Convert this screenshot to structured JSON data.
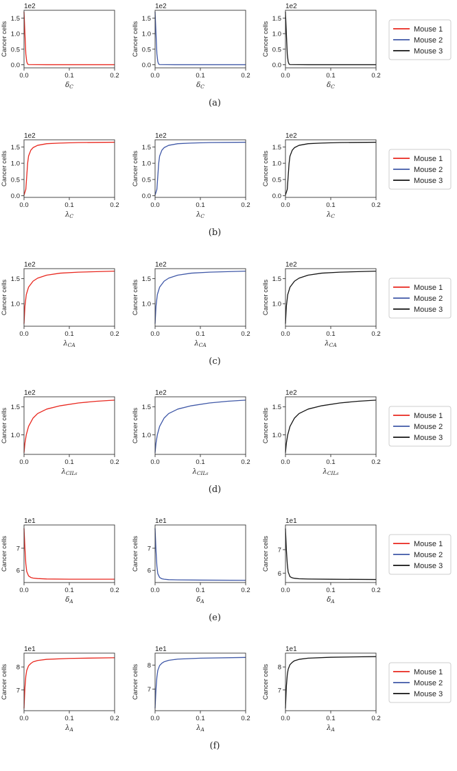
{
  "figure_rows": [
    {
      "caption": "(a)",
      "legend": [
        "Mouse 1",
        "Mouse 2",
        "Mouse 3"
      ]
    },
    {
      "caption": "(b)",
      "legend": [
        "Mouse 1",
        "Mouse 2",
        "Mouse 3"
      ]
    },
    {
      "caption": "(c)",
      "legend": [
        "Mouse 1",
        "Mouse 2",
        "Mouse 3"
      ]
    },
    {
      "caption": "(d)",
      "legend": [
        "Mouse 1",
        "Mouse 2",
        "Mouse 3"
      ]
    },
    {
      "caption": "(e)",
      "legend": [
        "Mouse 1",
        "Mouse 2",
        "Mouse 3"
      ]
    },
    {
      "caption": "(f)",
      "legend": [
        "Mouse 1",
        "Mouse 2",
        "Mouse 3"
      ]
    }
  ],
  "colors": {
    "Mouse 1": "#e8251c",
    "Mouse 2": "#3d56a6",
    "Mouse 3": "#111111"
  },
  "chart_data": [
    {
      "type": "line",
      "row": 0,
      "col": 0,
      "xlabel_sym": "δ",
      "xlabel_sub": "C",
      "ylabel": "Cancer cells",
      "y_exponent": "1e2",
      "xlim": [
        0,
        0.2
      ],
      "ylim": [
        -0.1,
        1.75
      ],
      "yticks": [
        "0.0",
        "0.5",
        "1.0",
        "1.5"
      ],
      "ytick_values": [
        0,
        0.5,
        1.0,
        1.5
      ],
      "xticks": [
        "0.0",
        "0.1",
        "0.2"
      ],
      "series": [
        {
          "name": "Mouse 1",
          "x": [
            0,
            0.002,
            0.004,
            0.006,
            0.008,
            0.01,
            0.05,
            0.2
          ],
          "y": [
            1.7,
            1.0,
            0.35,
            0.1,
            0.02,
            0.005,
            0.0,
            0.0
          ]
        }
      ]
    },
    {
      "type": "line",
      "row": 0,
      "col": 1,
      "xlabel_sym": "δ",
      "xlabel_sub": "C",
      "ylabel": "Cancer cells",
      "y_exponent": "1e2",
      "xlim": [
        0,
        0.2
      ],
      "ylim": [
        -0.1,
        1.75
      ],
      "yticks": [
        "0.0",
        "0.5",
        "1.0",
        "1.5"
      ],
      "ytick_values": [
        0,
        0.5,
        1.0,
        1.5
      ],
      "xticks": [
        "0.0",
        "0.1",
        "0.2"
      ],
      "series": [
        {
          "name": "Mouse 2",
          "x": [
            0,
            0.002,
            0.004,
            0.006,
            0.008,
            0.01,
            0.05,
            0.2
          ],
          "y": [
            1.7,
            1.0,
            0.35,
            0.1,
            0.02,
            0.005,
            0.0,
            0.0
          ]
        }
      ]
    },
    {
      "type": "line",
      "row": 0,
      "col": 2,
      "xlabel_sym": "δ",
      "xlabel_sub": "C",
      "ylabel": "Cancer cells",
      "y_exponent": "1e2",
      "xlim": [
        0,
        0.2
      ],
      "ylim": [
        -0.1,
        1.75
      ],
      "yticks": [
        "0.0",
        "0.5",
        "1.0",
        "1.5"
      ],
      "ytick_values": [
        0,
        0.5,
        1.0,
        1.5
      ],
      "xticks": [
        "0.0",
        "0.1",
        "0.2"
      ],
      "series": [
        {
          "name": "Mouse 3",
          "x": [
            0,
            0.002,
            0.004,
            0.006,
            0.008,
            0.01,
            0.05,
            0.2
          ],
          "y": [
            1.7,
            1.0,
            0.35,
            0.1,
            0.02,
            0.005,
            0.0,
            0.0
          ]
        }
      ]
    },
    {
      "type": "line",
      "row": 1,
      "col": 0,
      "xlabel_sym": "λ",
      "xlabel_sub": "C",
      "ylabel": "Cancer cells",
      "y_exponent": "1e2",
      "xlim": [
        0,
        0.2
      ],
      "ylim": [
        -0.05,
        1.72
      ],
      "yticks": [
        "0.0",
        "0.5",
        "1.0",
        "1.5"
      ],
      "ytick_values": [
        0,
        0.5,
        1.0,
        1.5
      ],
      "xticks": [
        "0.0",
        "0.1",
        "0.2"
      ],
      "series": [
        {
          "name": "Mouse 1",
          "x": [
            0,
            0.004,
            0.006,
            0.008,
            0.01,
            0.015,
            0.02,
            0.03,
            0.05,
            0.08,
            0.12,
            0.2
          ],
          "y": [
            0.02,
            0.2,
            0.6,
            1.0,
            1.22,
            1.4,
            1.48,
            1.55,
            1.6,
            1.62,
            1.635,
            1.645
          ]
        }
      ]
    },
    {
      "type": "line",
      "row": 1,
      "col": 1,
      "xlabel_sym": "λ",
      "xlabel_sub": "C",
      "ylabel": "Cancer cells",
      "y_exponent": "1e2",
      "xlim": [
        0,
        0.2
      ],
      "ylim": [
        -0.05,
        1.72
      ],
      "yticks": [
        "0.0",
        "0.5",
        "1.0",
        "1.5"
      ],
      "ytick_values": [
        0,
        0.5,
        1.0,
        1.5
      ],
      "xticks": [
        "0.0",
        "0.1",
        "0.2"
      ],
      "series": [
        {
          "name": "Mouse 2",
          "x": [
            0,
            0.004,
            0.006,
            0.008,
            0.01,
            0.015,
            0.02,
            0.03,
            0.05,
            0.08,
            0.12,
            0.2
          ],
          "y": [
            0.02,
            0.2,
            0.6,
            1.0,
            1.22,
            1.4,
            1.48,
            1.55,
            1.6,
            1.62,
            1.635,
            1.645
          ]
        }
      ]
    },
    {
      "type": "line",
      "row": 1,
      "col": 2,
      "xlabel_sym": "λ",
      "xlabel_sub": "C",
      "ylabel": "Cancer cells",
      "y_exponent": "1e2",
      "xlim": [
        0,
        0.2
      ],
      "ylim": [
        -0.05,
        1.72
      ],
      "yticks": [
        "0.0",
        "0.5",
        "1.0",
        "1.5"
      ],
      "ytick_values": [
        0,
        0.5,
        1.0,
        1.5
      ],
      "xticks": [
        "0.0",
        "0.1",
        "0.2"
      ],
      "series": [
        {
          "name": "Mouse 3",
          "x": [
            0,
            0.004,
            0.006,
            0.008,
            0.01,
            0.015,
            0.02,
            0.03,
            0.05,
            0.08,
            0.12,
            0.2
          ],
          "y": [
            0.02,
            0.2,
            0.6,
            1.0,
            1.22,
            1.4,
            1.48,
            1.55,
            1.6,
            1.62,
            1.635,
            1.645
          ]
        }
      ]
    },
    {
      "type": "line",
      "row": 2,
      "col": 0,
      "xlabel_sym": "λ",
      "xlabel_sub": "CA",
      "ylabel": "Cancer cells",
      "y_exponent": "1e2",
      "xlim": [
        0,
        0.2
      ],
      "ylim": [
        0.55,
        1.7
      ],
      "yticks": [
        "1.0",
        "1.5"
      ],
      "ytick_values": [
        1.0,
        1.5
      ],
      "xticks": [
        "0.0",
        "0.1",
        "0.2"
      ],
      "series": [
        {
          "name": "Mouse 1",
          "x": [
            0,
            0.002,
            0.005,
            0.01,
            0.02,
            0.03,
            0.05,
            0.08,
            0.12,
            0.2
          ],
          "y": [
            0.6,
            0.95,
            1.18,
            1.33,
            1.45,
            1.51,
            1.57,
            1.61,
            1.63,
            1.65
          ]
        }
      ]
    },
    {
      "type": "line",
      "row": 2,
      "col": 1,
      "xlabel_sym": "λ",
      "xlabel_sub": "CA",
      "ylabel": "Cancer cells",
      "y_exponent": "1e2",
      "xlim": [
        0,
        0.2
      ],
      "ylim": [
        0.55,
        1.7
      ],
      "yticks": [
        "1.0",
        "1.5"
      ],
      "ytick_values": [
        1.0,
        1.5
      ],
      "xticks": [
        "0.0",
        "0.1",
        "0.2"
      ],
      "series": [
        {
          "name": "Mouse 2",
          "x": [
            0,
            0.002,
            0.005,
            0.01,
            0.02,
            0.03,
            0.05,
            0.08,
            0.12,
            0.2
          ],
          "y": [
            0.6,
            0.95,
            1.18,
            1.33,
            1.45,
            1.51,
            1.57,
            1.61,
            1.63,
            1.65
          ]
        }
      ]
    },
    {
      "type": "line",
      "row": 2,
      "col": 2,
      "xlabel_sym": "λ",
      "xlabel_sub": "CA",
      "ylabel": "Cancer cells",
      "y_exponent": "1e2",
      "xlim": [
        0,
        0.2
      ],
      "ylim": [
        0.55,
        1.7
      ],
      "yticks": [
        "1.0",
        "1.5"
      ],
      "ytick_values": [
        1.0,
        1.5
      ],
      "xticks": [
        "0.0",
        "0.1",
        "0.2"
      ],
      "series": [
        {
          "name": "Mouse 3",
          "x": [
            0,
            0.002,
            0.005,
            0.01,
            0.02,
            0.03,
            0.05,
            0.08,
            0.12,
            0.2
          ],
          "y": [
            0.6,
            0.95,
            1.18,
            1.33,
            1.45,
            1.51,
            1.57,
            1.61,
            1.63,
            1.65
          ]
        }
      ]
    },
    {
      "type": "line",
      "row": 3,
      "col": 0,
      "xlabel_sym": "λ",
      "xlabel_sub": "CIL₆",
      "ylabel": "Cancer cells",
      "y_exponent": "1e2",
      "xlim": [
        0,
        0.2
      ],
      "ylim": [
        0.65,
        1.68
      ],
      "yticks": [
        "1.0",
        "1.5"
      ],
      "ytick_values": [
        1.0,
        1.5
      ],
      "xticks": [
        "0.0",
        "0.1",
        "0.2"
      ],
      "series": [
        {
          "name": "Mouse 1",
          "x": [
            0,
            0.002,
            0.005,
            0.01,
            0.02,
            0.03,
            0.05,
            0.08,
            0.12,
            0.16,
            0.2
          ],
          "y": [
            0.68,
            0.85,
            1.0,
            1.15,
            1.3,
            1.38,
            1.46,
            1.52,
            1.57,
            1.6,
            1.62
          ]
        }
      ]
    },
    {
      "type": "line",
      "row": 3,
      "col": 1,
      "xlabel_sym": "λ",
      "xlabel_sub": "CIL₆",
      "ylabel": "Cancer cells",
      "y_exponent": "1e2",
      "xlim": [
        0,
        0.2
      ],
      "ylim": [
        0.65,
        1.68
      ],
      "yticks": [
        "1.0",
        "1.5"
      ],
      "ytick_values": [
        1.0,
        1.5
      ],
      "xticks": [
        "0.0",
        "0.1",
        "0.2"
      ],
      "series": [
        {
          "name": "Mouse 2",
          "x": [
            0,
            0.002,
            0.005,
            0.01,
            0.02,
            0.03,
            0.05,
            0.08,
            0.12,
            0.16,
            0.2
          ],
          "y": [
            0.68,
            0.85,
            1.0,
            1.15,
            1.3,
            1.38,
            1.46,
            1.52,
            1.57,
            1.6,
            1.62
          ]
        }
      ]
    },
    {
      "type": "line",
      "row": 3,
      "col": 2,
      "xlabel_sym": "λ",
      "xlabel_sub": "CIL₆",
      "ylabel": "Cancer cells",
      "y_exponent": "1e2",
      "xlim": [
        0,
        0.2
      ],
      "ylim": [
        0.65,
        1.68
      ],
      "yticks": [
        "1.0",
        "1.5"
      ],
      "ytick_values": [
        1.0,
        1.5
      ],
      "xticks": [
        "0.0",
        "0.1",
        "0.2"
      ],
      "series": [
        {
          "name": "Mouse 3",
          "x": [
            0,
            0.002,
            0.005,
            0.01,
            0.02,
            0.03,
            0.05,
            0.08,
            0.12,
            0.16,
            0.2
          ],
          "y": [
            0.68,
            0.85,
            1.0,
            1.15,
            1.3,
            1.38,
            1.46,
            1.52,
            1.57,
            1.6,
            1.62
          ]
        }
      ]
    },
    {
      "type": "line",
      "row": 4,
      "col": 0,
      "xlabel_sym": "δ",
      "xlabel_sub": "A",
      "ylabel": "Cancer cells",
      "y_exponent": "1e1",
      "xlim": [
        0,
        0.2
      ],
      "ylim": [
        5.45,
        8.05
      ],
      "yticks": [
        "6",
        "7"
      ],
      "ytick_values": [
        6,
        7
      ],
      "xticks": [
        "0.0",
        "0.1",
        "0.2"
      ],
      "series": [
        {
          "name": "Mouse 1",
          "x": [
            0,
            0.002,
            0.004,
            0.006,
            0.01,
            0.015,
            0.02,
            0.03,
            0.05,
            0.1,
            0.2
          ],
          "y": [
            7.9,
            7.0,
            6.3,
            5.95,
            5.75,
            5.68,
            5.65,
            5.63,
            5.61,
            5.6,
            5.6
          ]
        }
      ]
    },
    {
      "type": "line",
      "row": 4,
      "col": 1,
      "xlabel_sym": "δ",
      "xlabel_sub": "A",
      "ylabel": "Cancer cells",
      "y_exponent": "1e1",
      "xlim": [
        0,
        0.2
      ],
      "ylim": [
        5.45,
        8.05
      ],
      "yticks": [
        "6",
        "7"
      ],
      "ytick_values": [
        6,
        7
      ],
      "xticks": [
        "0.0",
        "0.1",
        "0.2"
      ],
      "series": [
        {
          "name": "Mouse 2",
          "x": [
            0,
            0.002,
            0.004,
            0.006,
            0.01,
            0.015,
            0.02,
            0.03,
            0.05,
            0.1,
            0.2
          ],
          "y": [
            7.9,
            6.9,
            6.2,
            5.85,
            5.68,
            5.62,
            5.6,
            5.58,
            5.57,
            5.56,
            5.55
          ]
        }
      ]
    },
    {
      "type": "line",
      "row": 4,
      "col": 2,
      "xlabel_sym": "δ",
      "xlabel_sub": "A",
      "ylabel": "Cancer cells",
      "y_exponent": "1e1",
      "xlim": [
        0,
        0.2
      ],
      "ylim": [
        5.6,
        8.05
      ],
      "yticks": [
        "6",
        "7"
      ],
      "ytick_values": [
        6,
        7
      ],
      "xticks": [
        "0.0",
        "0.1",
        "0.2"
      ],
      "series": [
        {
          "name": "Mouse 3",
          "x": [
            0,
            0.002,
            0.004,
            0.006,
            0.01,
            0.015,
            0.02,
            0.03,
            0.05,
            0.1,
            0.2
          ],
          "y": [
            7.9,
            7.0,
            6.4,
            6.05,
            5.85,
            5.8,
            5.78,
            5.76,
            5.75,
            5.74,
            5.73
          ]
        }
      ]
    },
    {
      "type": "line",
      "row": 5,
      "col": 0,
      "xlabel_sym": "λ",
      "xlabel_sub": "A",
      "ylabel": "Cancer cells",
      "y_exponent": "1e1",
      "xlim": [
        0,
        0.2
      ],
      "ylim": [
        6.1,
        8.6
      ],
      "yticks": [
        "7",
        "8"
      ],
      "ytick_values": [
        7,
        8
      ],
      "xticks": [
        "0.0",
        "0.1",
        "0.2"
      ],
      "series": [
        {
          "name": "Mouse 1",
          "x": [
            0,
            0.002,
            0.004,
            0.006,
            0.01,
            0.015,
            0.02,
            0.03,
            0.05,
            0.1,
            0.2
          ],
          "y": [
            6.2,
            7.1,
            7.6,
            7.85,
            8.05,
            8.15,
            8.22,
            8.28,
            8.33,
            8.37,
            8.4
          ]
        }
      ]
    },
    {
      "type": "line",
      "row": 5,
      "col": 1,
      "xlabel_sym": "λ",
      "xlabel_sub": "A",
      "ylabel": "Cancer cells",
      "y_exponent": "1e1",
      "xlim": [
        0,
        0.2
      ],
      "ylim": [
        6.1,
        8.5
      ],
      "yticks": [
        "7",
        "8"
      ],
      "ytick_values": [
        7,
        8
      ],
      "xticks": [
        "0.0",
        "0.1",
        "0.2"
      ],
      "series": [
        {
          "name": "Mouse 2",
          "x": [
            0,
            0.002,
            0.004,
            0.006,
            0.01,
            0.015,
            0.02,
            0.03,
            0.05,
            0.1,
            0.2
          ],
          "y": [
            6.2,
            7.0,
            7.5,
            7.78,
            7.98,
            8.08,
            8.14,
            8.2,
            8.25,
            8.29,
            8.32
          ]
        }
      ]
    },
    {
      "type": "line",
      "row": 5,
      "col": 2,
      "xlabel_sym": "λ",
      "xlabel_sub": "A",
      "ylabel": "Cancer cells",
      "y_exponent": "1e1",
      "xlim": [
        0,
        0.2
      ],
      "ylim": [
        6.1,
        8.6
      ],
      "yticks": [
        "7",
        "8"
      ],
      "ytick_values": [
        7,
        8
      ],
      "xticks": [
        "0.0",
        "0.1",
        "0.2"
      ],
      "series": [
        {
          "name": "Mouse 3",
          "x": [
            0,
            0.002,
            0.004,
            0.006,
            0.01,
            0.015,
            0.02,
            0.03,
            0.05,
            0.1,
            0.2
          ],
          "y": [
            6.2,
            7.15,
            7.65,
            7.9,
            8.1,
            8.2,
            8.27,
            8.33,
            8.38,
            8.42,
            8.45
          ]
        }
      ]
    }
  ]
}
